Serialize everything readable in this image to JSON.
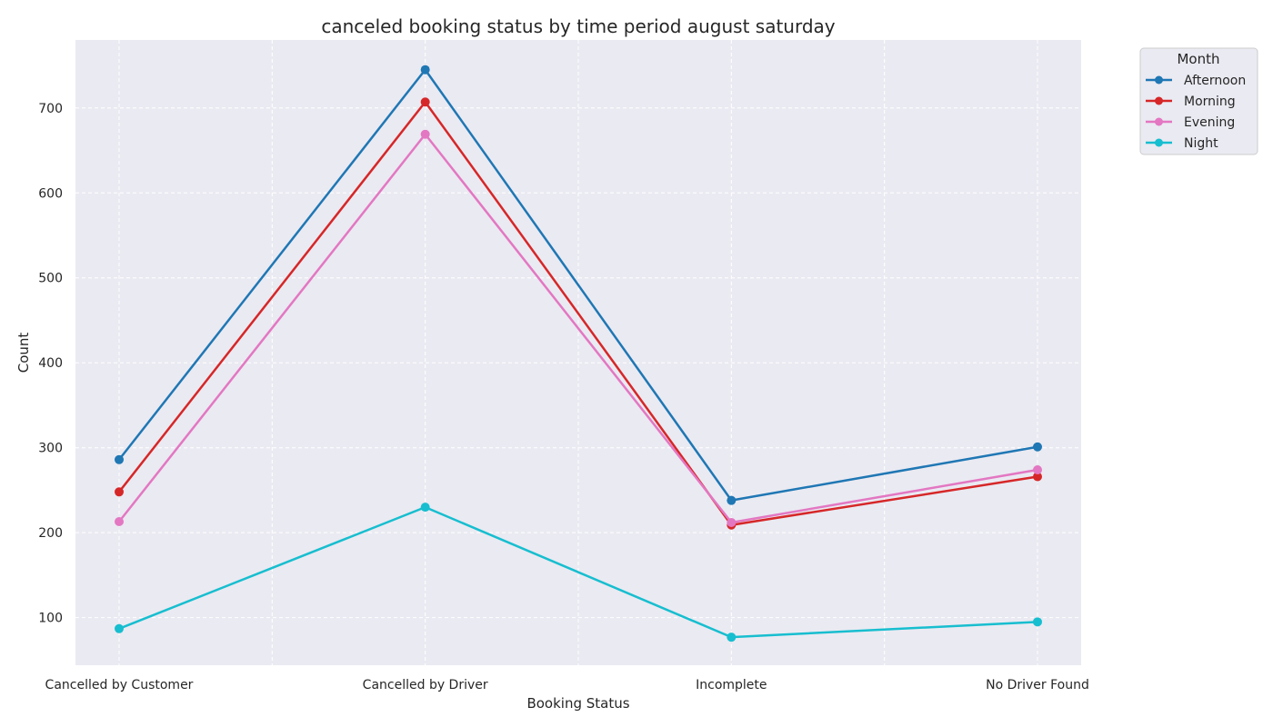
{
  "chart_data": {
    "type": "line",
    "title": "canceled booking status by time period august saturday",
    "xlabel": "Booking Status",
    "ylabel": "Count",
    "categories": [
      "Cancelled by Customer",
      "Cancelled by Driver",
      "Incomplete",
      "No Driver Found"
    ],
    "ylim": [
      44,
      780
    ],
    "yticks": [
      100,
      200,
      300,
      400,
      500,
      600,
      700
    ],
    "grid": true,
    "legend": {
      "title": "Month",
      "placement": "outside top-right"
    },
    "series": [
      {
        "name": "Afternoon",
        "color": "#1f77b4",
        "values": [
          286,
          745,
          238,
          301
        ]
      },
      {
        "name": "Morning",
        "color": "#d62728",
        "values": [
          248,
          707,
          209,
          266
        ]
      },
      {
        "name": "Evening",
        "color": "#e377c2",
        "values": [
          213,
          669,
          212,
          274
        ]
      },
      {
        "name": "Night",
        "color": "#17becf",
        "values": [
          87,
          230,
          77,
          95
        ]
      }
    ]
  }
}
